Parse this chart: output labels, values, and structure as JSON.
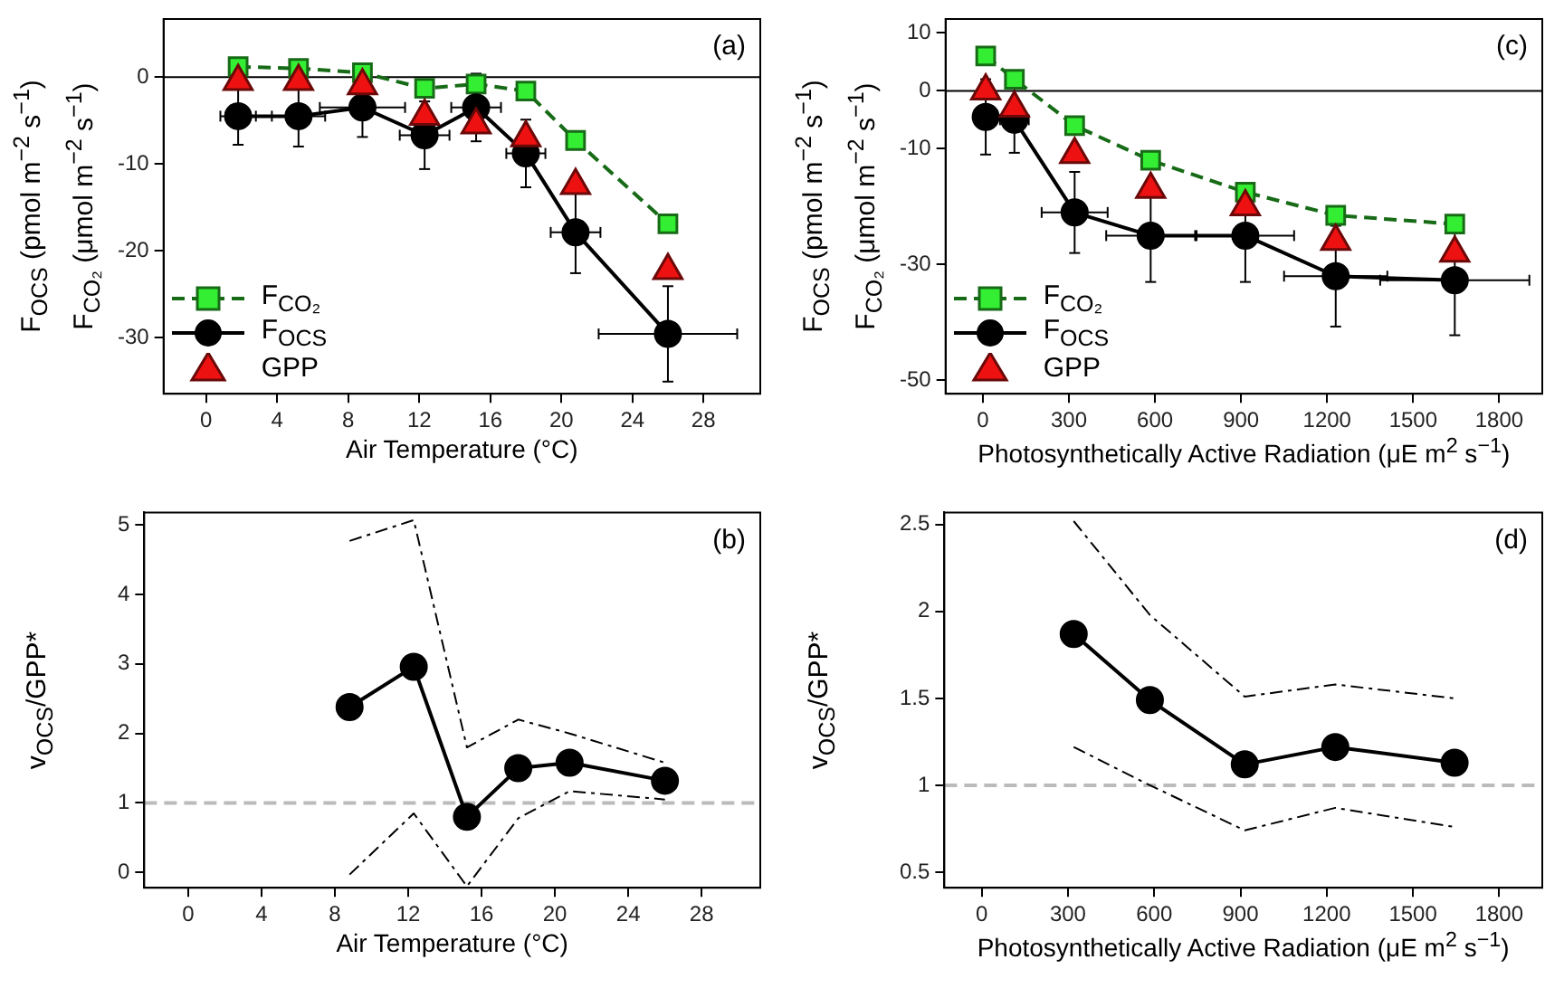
{
  "chart_data": [
    {
      "type": "line",
      "xlabel": "Air Temperature (°C)",
      "ylabel": "F$_{OCS}$ (pmol m$^{−2}$ s$^{−1}$)\nF$_{CO₂}$ (μmol m$^{−2}$ s$^{−1}$)",
      "xlim": [
        -2.4,
        31.2
      ],
      "xticks": [
        0,
        4,
        8,
        12,
        16,
        20,
        24,
        28
      ],
      "ylim": [
        -36.5,
        6.7
      ],
      "yticks": [
        -30,
        -20,
        -10,
        0
      ],
      "legend": "bottom left",
      "annotations": [
        "(a)"
      ],
      "ref_lines": [
        {
          "axis": "y",
          "value": 0,
          "color": "#000000",
          "line_style": "solid"
        }
      ],
      "x": [
        1.8,
        5.2,
        8.8,
        12.3,
        15.2,
        18,
        20.8,
        26
      ],
      "series": [
        {
          "name": "F$_{CO₂}$",
          "color": "#33ee33",
          "marker": "square",
          "line_style": "dashed",
          "values": [
            1.2,
            1,
            0.5,
            -1.3,
            -0.8,
            -1.6,
            -7.3,
            -16.9
          ]
        },
        {
          "name": "F$_{OCS}$",
          "color": "#000000",
          "marker": "circle",
          "line_style": "solid",
          "values": [
            -4.5,
            -4.5,
            -3.5,
            -6.7,
            -3.5,
            -8.8,
            -17.9,
            -29.6
          ],
          "errors": [
            3.3,
            3.5,
            3.4,
            3.9,
            3.9,
            3.9,
            4.7,
            5.5
          ],
          "xerrors": [
            1.0,
            1.5,
            2.4,
            1.4,
            1.4,
            1.1,
            1.4,
            3.9
          ]
        },
        {
          "name": "GPP",
          "type": "scatter",
          "color": "#ee1111",
          "marker": "triangle",
          "values": [
            -0.5,
            -0.5,
            -1,
            -4.5,
            -5.5,
            -7,
            -12.5,
            -22.3
          ]
        }
      ]
    },
    {
      "type": "line",
      "xlabel": "Photosynthetically Active Radiation (μE m$^{2}$ s$^{−1}$)",
      "ylabel": "F$_{OCS}$ (pmol m$^{−2}$ s$^{−1}$)\nF$_{CO₂}$ (μmol m$^{−2}$ s$^{−1}$)",
      "xlim": [
        -130,
        1950
      ],
      "xticks": [
        0,
        300,
        600,
        900,
        1200,
        1500,
        1800
      ],
      "ylim": [
        -52.3,
        12.4
      ],
      "yticks": [
        -50,
        -30,
        -10,
        0,
        10
      ],
      "legend": "bottom left",
      "annotations": [
        "(c)"
      ],
      "ref_lines": [
        {
          "axis": "y",
          "value": 0,
          "color": "#000000",
          "line_style": "solid"
        }
      ],
      "x": [
        10,
        110,
        320,
        585,
        915,
        1230,
        1645
      ],
      "series": [
        {
          "name": "F$_{CO₂}$",
          "color": "#33ee33",
          "marker": "square",
          "line_style": "dashed",
          "values": [
            6,
            2,
            -6,
            -12,
            -17.5,
            -21.5,
            -23
          ]
        },
        {
          "name": "F$_{OCS}$",
          "color": "#000000",
          "marker": "circle",
          "line_style": "solid",
          "values": [
            -4.5,
            -5,
            -21,
            -25,
            -25,
            -32,
            -32.7
          ],
          "errors": [
            6.5,
            5.7,
            7,
            8,
            8,
            8.7,
            9.5
          ],
          "xerrors": [
            null,
            50,
            115,
            155,
            170,
            180,
            260
          ]
        },
        {
          "name": "GPP",
          "type": "scatter",
          "color": "#ee1111",
          "marker": "triangle",
          "values": [
            0,
            -3,
            -11,
            -17,
            -20,
            -26,
            -28
          ]
        }
      ]
    },
    {
      "type": "line",
      "xlabel": "Air Temperature (°C)",
      "ylabel": "v$_{OCS}$/GPP*",
      "xlim": [
        -2.4,
        31.2
      ],
      "xticks": [
        0,
        4,
        8,
        12,
        16,
        20,
        24,
        28
      ],
      "ylim": [
        -0.22,
        5.18
      ],
      "yticks": [
        0,
        1,
        2,
        3,
        4,
        5
      ],
      "annotations": [
        "(b)"
      ],
      "ref_lines": [
        {
          "axis": "y",
          "value": 1,
          "color": "#bbbbbb",
          "line_style": "dashed"
        }
      ],
      "x": [
        8.8,
        12.3,
        15.2,
        18,
        20.8,
        26
      ],
      "series": [
        {
          "color": "#000000",
          "marker": "circle",
          "line_style": "solid",
          "values": [
            2.38,
            2.96,
            0.8,
            1.5,
            1.58,
            1.32
          ]
        },
        {
          "color": "#000000",
          "marker": "none",
          "line_style": "dashed",
          "values": [
            -0.03,
            0.85,
            -0.2,
            0.78,
            1.17,
            1.05
          ]
        },
        {
          "color": "#000000",
          "marker": "none",
          "line_style": "dashed",
          "values": [
            4.77,
            5.07,
            1.8,
            2.2,
            2.0,
            1.58
          ]
        }
      ]
    },
    {
      "type": "line",
      "xlabel": "Photosynthetically Active Radiation (μE m$^{2}$ s$^{−1}$)",
      "ylabel": "v$_{OCS}$/GPP*",
      "xlim": [
        -130,
        1950
      ],
      "xticks": [
        0,
        300,
        600,
        900,
        1200,
        1500,
        1800
      ],
      "ylim": [
        0.41,
        2.57
      ],
      "yticks": [
        0.5,
        1.0,
        1.5,
        2.0,
        2.5
      ],
      "annotations": [
        "(d)"
      ],
      "ref_lines": [
        {
          "axis": "y",
          "value": 1,
          "color": "#bbbbbb",
          "line_style": "dashed"
        }
      ],
      "x": [
        320,
        585,
        915,
        1230,
        1645
      ],
      "series": [
        {
          "color": "#000000",
          "marker": "circle",
          "line_style": "solid",
          "values": [
            1.87,
            1.49,
            1.12,
            1.22,
            1.13
          ]
        },
        {
          "color": "#000000",
          "marker": "none",
          "line_style": "dashed",
          "values": [
            1.22,
            1.0,
            0.74,
            0.87,
            0.76
          ]
        },
        {
          "color": "#000000",
          "marker": "none",
          "line_style": "dashed",
          "values": [
            2.52,
            1.98,
            1.51,
            1.58,
            1.5
          ]
        }
      ]
    }
  ]
}
